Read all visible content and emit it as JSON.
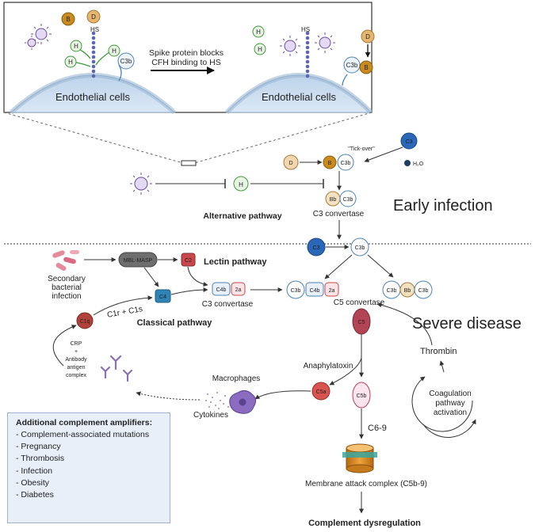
{
  "inset": {
    "left_cell_label": "Endothelial cells",
    "right_cell_label": "Endothelial cells",
    "arrow_text_line1": "Spike protein blocks",
    "arrow_text_line2": "CFH binding to HS",
    "hs": "HS"
  },
  "components": {
    "B": "B",
    "D": "D",
    "H": "H",
    "C3b": "C3b",
    "C3": "C3",
    "Bb": "Bb",
    "C4": "C4",
    "C4b": "C4b",
    "C2": "C2",
    "a2": "2a",
    "C1q": "C1q",
    "C5": "C5",
    "C5a": "C5a",
    "C5b": "C5b",
    "MBL": "MBL-MASP"
  },
  "labels": {
    "tick_over": "\"Tick-over\"",
    "h2o": "H₂O",
    "c3_convertase": "C3 convertase",
    "c3_convertase2": "C3 convertase",
    "alternative_pathway": "Alternative pathway",
    "early_infection": "Early infection",
    "lectin_pathway": "Lectin pathway",
    "classical_pathway": "Classical pathway",
    "c1r_c1s": "C1r + C1s",
    "secondary_l1": "Secondary",
    "secondary_l2": "bacterial",
    "secondary_l3": "infection",
    "c5_convertase": "C5 convertase",
    "severe_disease": "Severe disease",
    "thrombin": "Thrombin",
    "coag_l1": "Coagulation",
    "coag_l2": "pathway",
    "coag_l3": "activation",
    "anaphylatoxin": "Anaphylatoxin",
    "macrophages": "Macrophages",
    "cytokines": "Cytokines",
    "crp_l1": "CRP",
    "crp_l2": "+",
    "crp_l3": "Antibody",
    "crp_l4": "antigen",
    "crp_l5": "complex",
    "c69": "C6-9",
    "mac": "Membrane attack complex (C5b-9)",
    "dysregulation": "Complement dysregulation"
  },
  "amplifiers": {
    "title": "Additional complement amplifiers:",
    "items": [
      "- Complement-associated mutations",
      "- Pregnancy",
      "- Thrombosis",
      "- Infection",
      "- Obesity",
      "- Diabetes"
    ]
  },
  "colors": {
    "B": "#c98a1e",
    "D": "#e6b56f",
    "H": "#3f9a3a",
    "C3b": "#4a83b8",
    "C3": "#2a67b8",
    "C4": "#2f83b5",
    "C2": "#c7474a",
    "C1q": "#b0423a",
    "C5": "#b24456",
    "C5a": "#d9534f",
    "MBL": "#6e6e6e"
  }
}
